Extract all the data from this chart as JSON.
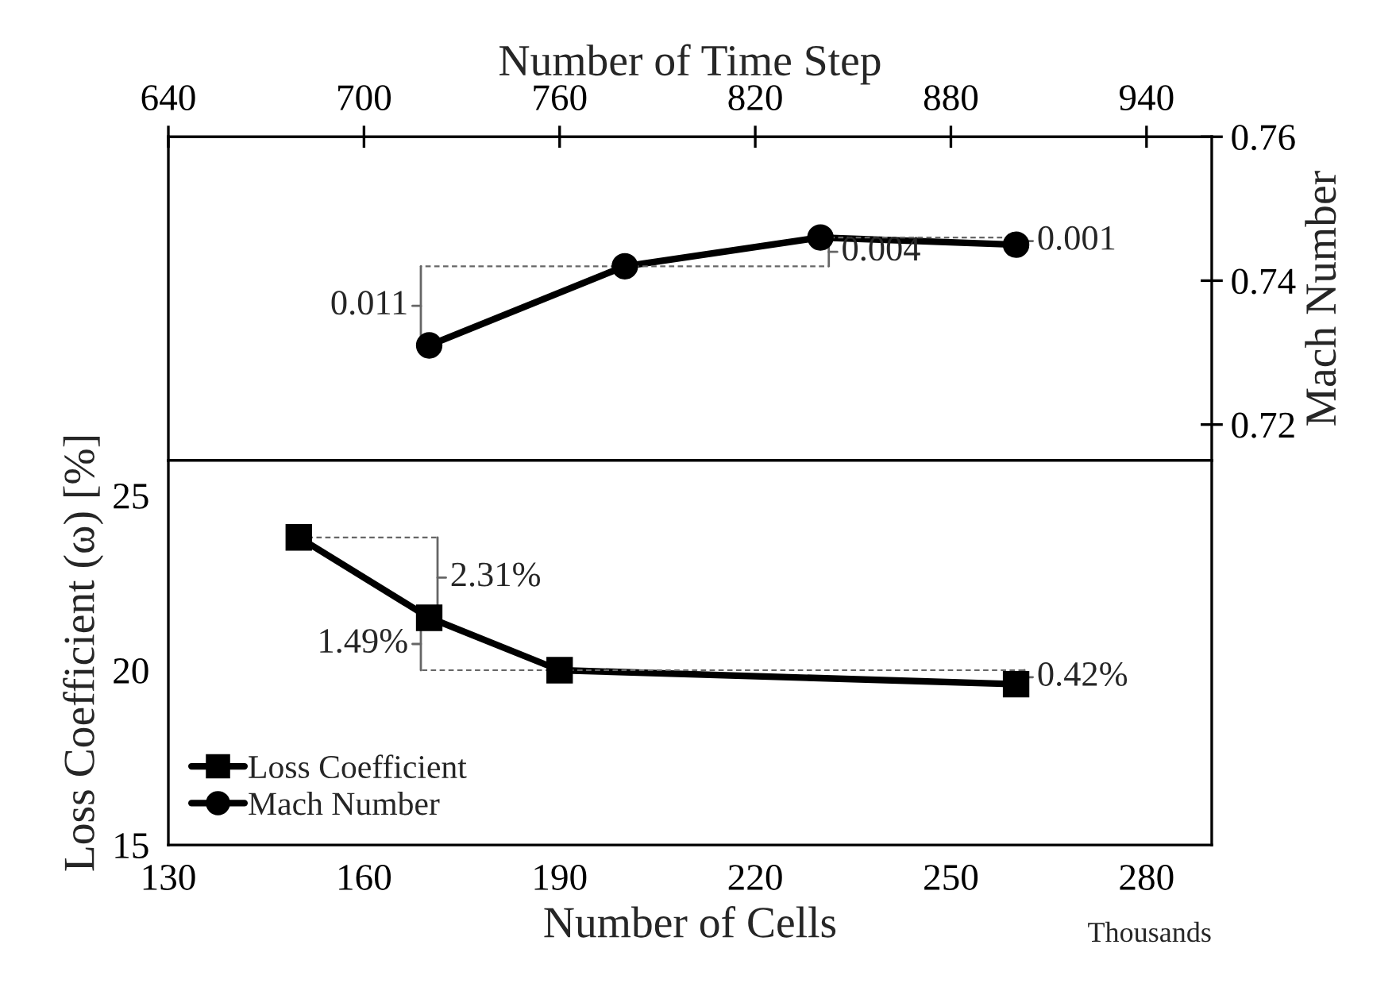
{
  "chart_data": [
    {
      "type": "line",
      "xlabel": "Number of Time Step",
      "ylabel": "Mach Number",
      "xlim": [
        640,
        960
      ],
      "xticks": [
        640,
        700,
        760,
        820,
        880,
        940
      ],
      "ylim": [
        0.715,
        0.76
      ],
      "yticks": [
        0.72,
        0.74,
        0.76
      ],
      "series": [
        {
          "name": "Mach Number",
          "color": "#000000",
          "marker": "circle",
          "x": [
            720,
            780,
            840,
            900
          ],
          "values": [
            0.731,
            0.742,
            0.746,
            0.745
          ]
        }
      ],
      "annotations": [
        {
          "text": "0.011",
          "x": 720,
          "y": 0.731
        },
        {
          "text": "0.004",
          "x": 840,
          "y": 0.746
        },
        {
          "text": "0.001",
          "x": 900,
          "y": 0.745
        }
      ],
      "line_style": "solid",
      "grid": false
    },
    {
      "type": "line",
      "xlabel": "Number of Cells",
      "ylabel": "Loss Coefficient (ω) [%]",
      "xlim": [
        130,
        290
      ],
      "xticks": [
        130,
        160,
        190,
        220,
        250,
        280
      ],
      "ylim": [
        15,
        26
      ],
      "yticks": [
        15,
        20,
        25
      ],
      "series": [
        {
          "name": "Loss Coefficient",
          "color": "#000000",
          "marker": "square",
          "x": [
            150,
            170,
            190,
            260
          ],
          "values": [
            23.8,
            21.5,
            20.0,
            19.6
          ]
        }
      ],
      "annotations": [
        {
          "text": "2.31%",
          "x": 170,
          "y": 21.5
        },
        {
          "text": "1.49%",
          "x": 170,
          "y": 21.5
        },
        {
          "text": "0.42%",
          "x": 260,
          "y": 19.6
        },
        "Thousands"
      ],
      "legend": "bottom left",
      "line_style": "solid",
      "grid": false
    }
  ]
}
